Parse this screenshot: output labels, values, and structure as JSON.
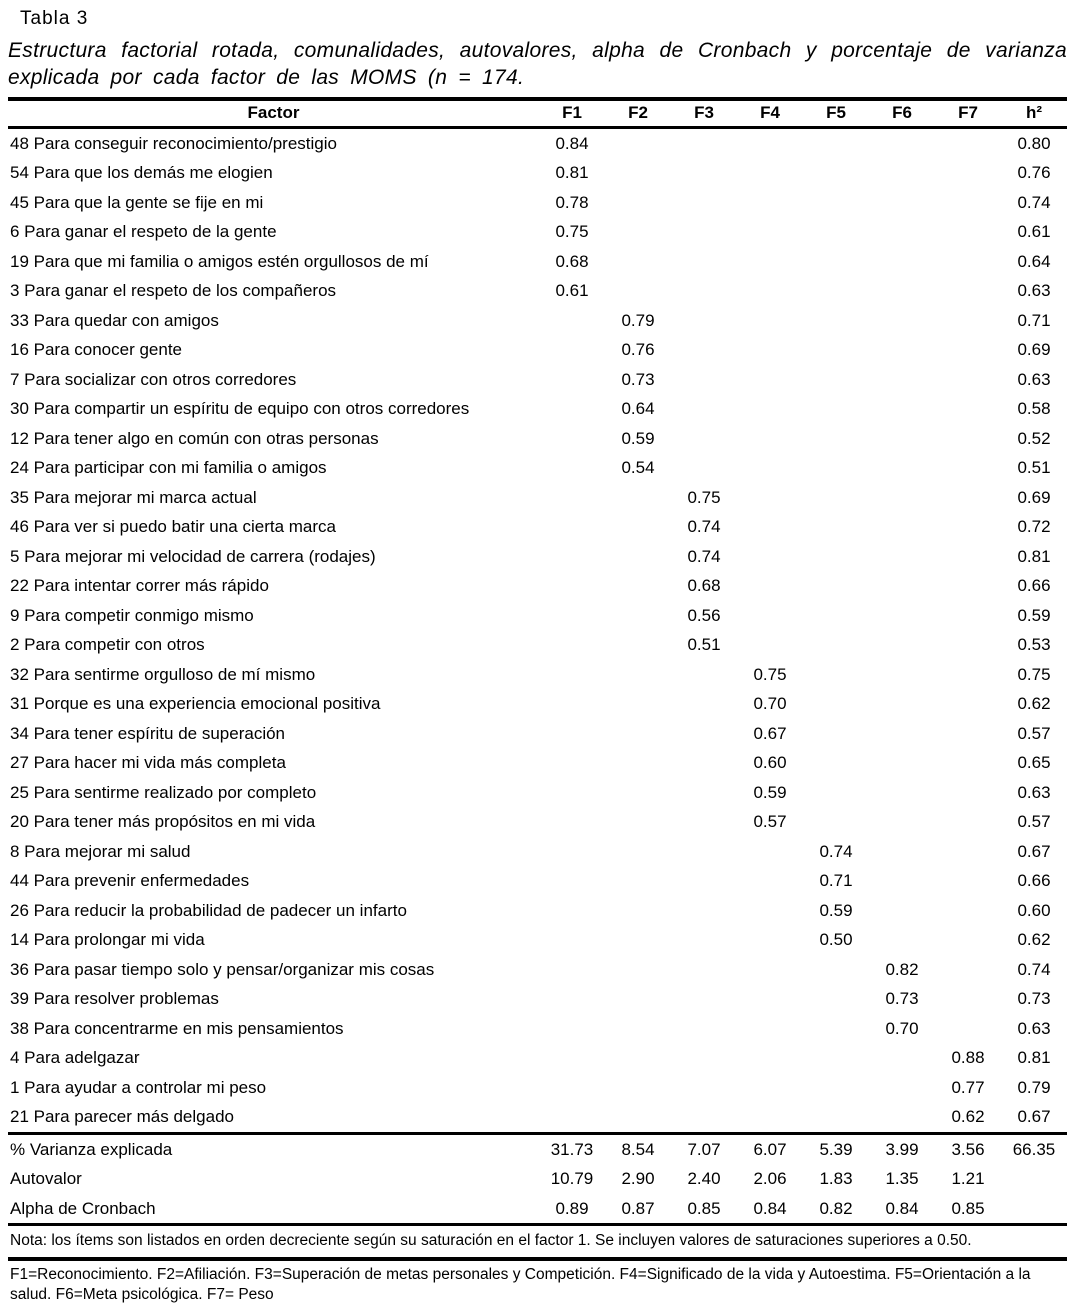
{
  "table_label": "Tabla 3",
  "caption": "Estructura factorial rotada, comunalidades, autovalores, alpha de Cronbach y porcentaje de varianza explicada por cada factor de las MOMS (n = 174.",
  "table": {
    "headers": [
      "Factor",
      "F1",
      "F2",
      "F3",
      "F4",
      "F5",
      "F6",
      "F7",
      "h²"
    ],
    "rows": [
      {
        "label": "48 Para conseguir reconocimiento/prestigio",
        "cells": [
          "0.84",
          "",
          "",
          "",
          "",
          "",
          "",
          "0.80"
        ]
      },
      {
        "label": "54 Para que los demás me elogien",
        "cells": [
          "0.81",
          "",
          "",
          "",
          "",
          "",
          "",
          "0.76"
        ]
      },
      {
        "label": "45 Para que la gente se fije en mi",
        "cells": [
          "0.78",
          "",
          "",
          "",
          "",
          "",
          "",
          "0.74"
        ]
      },
      {
        "label": "6 Para ganar el respeto de la gente",
        "cells": [
          "0.75",
          "",
          "",
          "",
          "",
          "",
          "",
          "0.61"
        ]
      },
      {
        "label": "19 Para que mi familia o amigos estén orgullosos de mí",
        "cells": [
          "0.68",
          "",
          "",
          "",
          "",
          "",
          "",
          "0.64"
        ]
      },
      {
        "label": "3 Para ganar el respeto de los compañeros",
        "cells": [
          "0.61",
          "",
          "",
          "",
          "",
          "",
          "",
          "0.63"
        ]
      },
      {
        "label": "33 Para quedar con amigos",
        "cells": [
          "",
          "0.79",
          "",
          "",
          "",
          "",
          "",
          "0.71"
        ]
      },
      {
        "label": "16 Para conocer gente",
        "cells": [
          "",
          "0.76",
          "",
          "",
          "",
          "",
          "",
          "0.69"
        ]
      },
      {
        "label": "7 Para socializar con otros corredores",
        "cells": [
          "",
          "0.73",
          "",
          "",
          "",
          "",
          "",
          "0.63"
        ]
      },
      {
        "label": "30 Para compartir un espíritu de equipo con otros corredores",
        "cells": [
          "",
          "0.64",
          "",
          "",
          "",
          "",
          "",
          "0.58"
        ]
      },
      {
        "label": "12 Para tener algo en común con otras personas",
        "cells": [
          "",
          "0.59",
          "",
          "",
          "",
          "",
          "",
          "0.52"
        ]
      },
      {
        "label": "24 Para participar con mi familia o amigos",
        "cells": [
          "",
          "0.54",
          "",
          "",
          "",
          "",
          "",
          "0.51"
        ]
      },
      {
        "label": "35 Para mejorar mi marca actual",
        "cells": [
          "",
          "",
          "0.75",
          "",
          "",
          "",
          "",
          "0.69"
        ]
      },
      {
        "label": "46 Para ver si puedo batir una cierta marca",
        "cells": [
          "",
          "",
          "0.74",
          "",
          "",
          "",
          "",
          "0.72"
        ]
      },
      {
        "label": "5 Para mejorar mi velocidad de carrera (rodajes)",
        "cells": [
          "",
          "",
          "0.74",
          "",
          "",
          "",
          "",
          "0.81"
        ]
      },
      {
        "label": "22 Para intentar correr más rápido",
        "cells": [
          "",
          "",
          "0.68",
          "",
          "",
          "",
          "",
          "0.66"
        ]
      },
      {
        "label": "9 Para competir conmigo mismo",
        "cells": [
          "",
          "",
          "0.56",
          "",
          "",
          "",
          "",
          "0.59"
        ]
      },
      {
        "label": "2 Para competir con otros",
        "cells": [
          "",
          "",
          "0.51",
          "",
          "",
          "",
          "",
          "0.53"
        ]
      },
      {
        "label": "32 Para sentirme orgulloso de mí mismo",
        "cells": [
          "",
          "",
          "",
          "0.75",
          "",
          "",
          "",
          "0.75"
        ]
      },
      {
        "label": "31 Porque es una experiencia emocional positiva",
        "cells": [
          "",
          "",
          "",
          "0.70",
          "",
          "",
          "",
          "0.62"
        ]
      },
      {
        "label": "34 Para tener espíritu de superación",
        "cells": [
          "",
          "",
          "",
          "0.67",
          "",
          "",
          "",
          "0.57"
        ]
      },
      {
        "label": "27 Para hacer mi vida más completa",
        "cells": [
          "",
          "",
          "",
          "0.60",
          "",
          "",
          "",
          "0.65"
        ]
      },
      {
        "label": "25 Para sentirme realizado por completo",
        "cells": [
          "",
          "",
          "",
          "0.59",
          "",
          "",
          "",
          "0.63"
        ]
      },
      {
        "label": "20 Para tener más propósitos en mi vida",
        "cells": [
          "",
          "",
          "",
          "0.57",
          "",
          "",
          "",
          "0.57"
        ]
      },
      {
        "label": "8 Para mejorar mi salud",
        "cells": [
          "",
          "",
          "",
          "",
          "0.74",
          "",
          "",
          "0.67"
        ]
      },
      {
        "label": "44 Para prevenir enfermedades",
        "cells": [
          "",
          "",
          "",
          "",
          "0.71",
          "",
          "",
          "0.66"
        ]
      },
      {
        "label": "26 Para reducir la probabilidad de padecer un infarto",
        "cells": [
          "",
          "",
          "",
          "",
          "0.59",
          "",
          "",
          "0.60"
        ]
      },
      {
        "label": "14 Para prolongar mi vida",
        "cells": [
          "",
          "",
          "",
          "",
          "0.50",
          "",
          "",
          "0.62"
        ]
      },
      {
        "label": "36 Para pasar tiempo solo y pensar/organizar mis cosas",
        "cells": [
          "",
          "",
          "",
          "",
          "",
          "0.82",
          "",
          "0.74"
        ]
      },
      {
        "label": "39 Para resolver problemas",
        "cells": [
          "",
          "",
          "",
          "",
          "",
          "0.73",
          "",
          "0.73"
        ]
      },
      {
        "label": "38 Para concentrarme en mis pensamientos",
        "cells": [
          "",
          "",
          "",
          "",
          "",
          "0.70",
          "",
          "0.63"
        ]
      },
      {
        "label": "4 Para adelgazar",
        "cells": [
          "",
          "",
          "",
          "",
          "",
          "",
          "0.88",
          "0.81"
        ]
      },
      {
        "label": "1 Para ayudar a controlar mi peso",
        "cells": [
          "",
          "",
          "",
          "",
          "",
          "",
          "0.77",
          "0.79"
        ]
      },
      {
        "label": "21 Para parecer más delgado",
        "cells": [
          "",
          "",
          "",
          "",
          "",
          "",
          "0.62",
          "0.67"
        ]
      }
    ],
    "summary_rows": [
      {
        "label": "% Varianza explicada",
        "cells": [
          "31.73",
          "8.54",
          "7.07",
          "6.07",
          "5.39",
          "3.99",
          "3.56",
          "66.35"
        ]
      },
      {
        "label": "Autovalor",
        "cells": [
          "10.79",
          "2.90",
          "2.40",
          "2.06",
          "1.83",
          "1.35",
          "1.21",
          ""
        ]
      },
      {
        "label": "Alpha de Cronbach",
        "cells": [
          "0.89",
          "0.87",
          "0.85",
          "0.84",
          "0.82",
          "0.84",
          "0.85",
          ""
        ]
      }
    ]
  },
  "notes": {
    "items_note": "Nota: los ítems son listados en orden decreciente según su saturación en el factor 1. Se incluyen valores de saturaciones superiores a 0.50.",
    "factor_legend": "F1=Reconocimiento. F2=Afiliación. F3=Superación de metas personales y Competición. F4=Significado de la vida y Autoestima. F5=Orientación a la salud. F6=Meta psicológica. F7= Peso"
  }
}
